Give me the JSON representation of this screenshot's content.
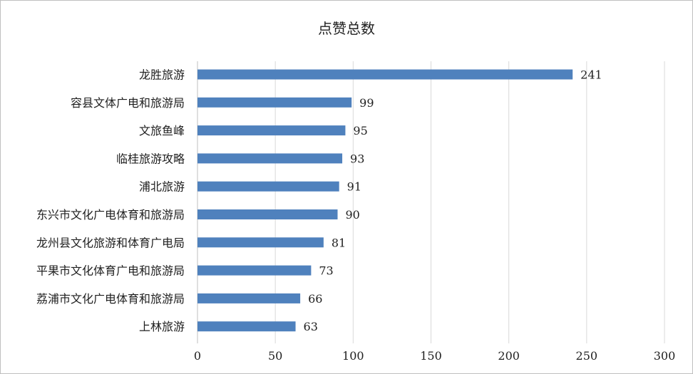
{
  "chart_data": {
    "type": "bar",
    "orientation": "horizontal",
    "title": "点赞总数",
    "categories": [
      "龙胜旅游",
      "容县文体广电和旅游局",
      "文旅鱼峰",
      "临桂旅游攻略",
      "浦北旅游",
      "东兴市文化广电体育和旅游局",
      "龙州县文化旅游和体育广电局",
      "平果市文化体育广电和旅游局",
      "荔浦市文化广电体育和旅游局",
      "上林旅游"
    ],
    "values": [
      241,
      99,
      95,
      93,
      91,
      90,
      81,
      73,
      66,
      63
    ],
    "xlim": [
      0,
      300
    ],
    "xticks": [
      "0",
      "50",
      "100",
      "150",
      "200",
      "250",
      "300"
    ],
    "grid": true,
    "data_labels": true,
    "bar_color": "#4f81bd",
    "grid_color": "#d9d9d9"
  }
}
